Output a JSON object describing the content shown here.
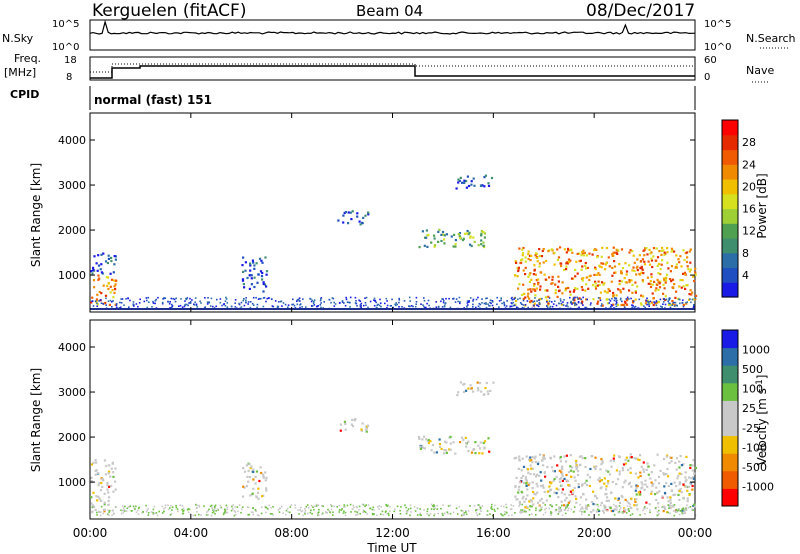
{
  "header": {
    "station": "Kerguelen (fitACF)",
    "beam": "Beam 04",
    "date": "08/Dec/2017"
  },
  "strip_labels": {
    "nsky": "N.Sky",
    "nsky_ticks": [
      "10^5",
      "10^0"
    ],
    "nsearch": "N.Search",
    "nsearch_ticks": [
      "10^5",
      "10^0"
    ],
    "freq": "Freq.",
    "freq_unit": "[MHz]",
    "freq_ticks": [
      "18",
      "8"
    ],
    "nave": "Nave",
    "nave_ticks": [
      "60",
      "0"
    ],
    "cpid": "CPID",
    "cpid_value": "normal (fast) 151"
  },
  "chart_data": [
    {
      "type": "heatmap",
      "name": "power",
      "ylabel": "Slant Range [km]",
      "y_ticks": [
        1000,
        2000,
        3000,
        4000
      ],
      "ylim": [
        180,
        4600
      ],
      "x_ticks": [
        "00:00",
        "04:00",
        "08:00",
        "12:00",
        "16:00",
        "20:00",
        "00:00"
      ],
      "xlim_hours": [
        0,
        24
      ],
      "colorbar": {
        "label": "Power [dB]",
        "ticks": [
          "28",
          "24",
          "20",
          "16",
          "12",
          "8",
          "4"
        ],
        "colors": [
          "#1a1ae6",
          "#1f4fc0",
          "#2b6ea8",
          "#3f8f6f",
          "#4fa050",
          "#9ed035",
          "#d6e01e",
          "#f0c000",
          "#f08a00",
          "#f05a00",
          "#e62a00",
          "#ff0000"
        ]
      },
      "echo_regions": [
        {
          "t": [
            0.0,
            1.0
          ],
          "r": [
            300,
            1000
          ],
          "level": "high"
        },
        {
          "t": [
            0.0,
            1.0
          ],
          "r": [
            1000,
            1500
          ],
          "level": "low"
        },
        {
          "t": [
            6.0,
            7.0
          ],
          "r": [
            600,
            1400
          ],
          "level": "low"
        },
        {
          "t": [
            9.8,
            11.0
          ],
          "r": [
            2100,
            2400
          ],
          "level": "low"
        },
        {
          "t": [
            13.0,
            15.8
          ],
          "r": [
            1600,
            2000
          ],
          "level": "mid"
        },
        {
          "t": [
            14.5,
            16.0
          ],
          "r": [
            2900,
            3200
          ],
          "level": "low"
        },
        {
          "t": [
            16.8,
            24.0
          ],
          "r": [
            300,
            1600
          ],
          "level": "high"
        }
      ]
    },
    {
      "type": "heatmap",
      "name": "velocity",
      "ylabel": "Slant Range [km]",
      "y_ticks": [
        1000,
        2000,
        3000,
        4000
      ],
      "ylim": [
        180,
        4600
      ],
      "x_ticks": [
        "00:00",
        "04:00",
        "08:00",
        "12:00",
        "16:00",
        "20:00",
        "00:00"
      ],
      "xlim_hours": [
        0,
        24
      ],
      "xlabel": "Time UT",
      "colorbar": {
        "label": "Velocity [m s",
        "label_sup": "-1",
        "label_end": "]",
        "ticks": [
          "1000",
          "500",
          "100",
          "25",
          "-25",
          "-100",
          "-500",
          "-1000"
        ],
        "colors": [
          "#1a1ae6",
          "#2b6ea8",
          "#3f8f6f",
          "#6cc040",
          "#c8c8c8",
          "#c8c8c8",
          "#f0c000",
          "#f08a00",
          "#f05a00",
          "#ff0000"
        ]
      }
    }
  ]
}
